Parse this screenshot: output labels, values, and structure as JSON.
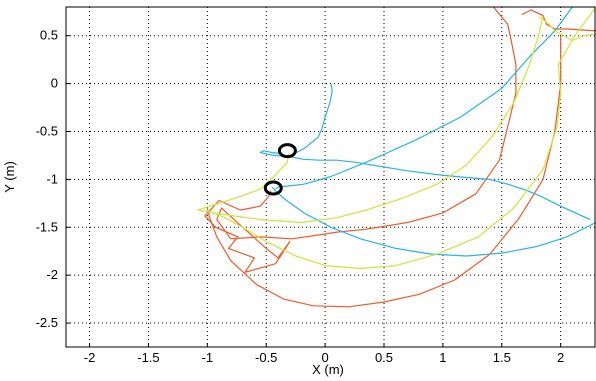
{
  "chart_data": {
    "type": "line",
    "title": "",
    "xlabel": "X (m)",
    "ylabel": "Y (m)",
    "xlim": [
      -2.2,
      2.3
    ],
    "ylim": [
      -2.75,
      0.8
    ],
    "xticks": [
      -2,
      -1.5,
      -1,
      -0.5,
      0,
      0.5,
      1,
      1.5,
      2
    ],
    "xtick_labels": [
      "-2",
      "-1.5",
      "-1",
      "-0.5",
      "0",
      "0.5",
      "1",
      "1.5",
      "2"
    ],
    "yticks": [
      0.5,
      0,
      -0.5,
      -1,
      -1.5,
      -2,
      -2.5
    ],
    "ytick_labels": [
      "0.5",
      "0",
      "-0.5",
      "-1",
      "-1.5",
      "-2",
      "-2.5"
    ],
    "grid": true,
    "grid_style": "dotted",
    "legend": "none",
    "colors": {
      "red": "#f2592a",
      "cyan": "#29b4e4",
      "yellowgreen": "#c8e83a",
      "marker": "#000000"
    },
    "series": [
      {
        "color": "#f2592a",
        "x": [
          1.43,
          1.55,
          1.58,
          1.62,
          1.62,
          1.55,
          1.48,
          1.28,
          1.0,
          0.7,
          0.35,
          0.1,
          -0.05,
          -0.28,
          -0.55,
          -0.8,
          -0.92,
          -0.88,
          -0.7,
          -0.5,
          -0.4,
          -0.3,
          -0.42,
          -0.68,
          -0.6,
          -0.82,
          -0.74,
          -0.93,
          -1.02,
          -0.9,
          -0.72,
          -0.55,
          -0.48,
          -0.46
        ],
        "y": [
          0.8,
          0.62,
          0.45,
          0.2,
          -0.1,
          -0.45,
          -0.8,
          -1.15,
          -1.35,
          -1.45,
          -1.52,
          -1.55,
          -1.58,
          -1.62,
          -1.6,
          -1.62,
          -1.42,
          -1.3,
          -1.5,
          -1.72,
          -1.82,
          -1.65,
          -1.88,
          -1.97,
          -1.82,
          -1.72,
          -1.6,
          -1.5,
          -1.38,
          -1.22,
          -1.32,
          -1.28,
          -1.18,
          -1.12
        ]
      },
      {
        "color": "#f2592a",
        "x": [
          1.67,
          1.75,
          1.85,
          1.88,
          1.95,
          2.06,
          2.3
        ],
        "y": [
          0.72,
          0.77,
          0.71,
          0.62,
          0.57,
          0.57,
          0.55
        ]
      },
      {
        "color": "#f2592a",
        "x": [
          2.0,
          2.0,
          1.95,
          1.85,
          1.65,
          1.4,
          1.1,
          0.8,
          0.5,
          0.2,
          -0.1,
          -0.35,
          -0.58,
          -0.8,
          -0.92,
          -0.98,
          -1.0
        ],
        "y": [
          0.5,
          0.0,
          -0.5,
          -1.0,
          -1.4,
          -1.78,
          -2.05,
          -2.2,
          -2.28,
          -2.33,
          -2.32,
          -2.25,
          -2.1,
          -1.85,
          -1.6,
          -1.4,
          -1.3
        ]
      },
      {
        "color": "#29b4e4",
        "x": [
          0.05,
          0.06,
          0.04,
          0.0,
          -0.03,
          -0.06,
          -0.1,
          -0.18,
          -0.26,
          -0.32,
          -0.38,
          -0.45,
          -0.52,
          -0.55,
          -0.48,
          -0.42,
          -0.32,
          -0.18,
          -0.05,
          0.1,
          0.25,
          0.45,
          0.7,
          0.95,
          1.2,
          1.4,
          1.55,
          1.7,
          1.82,
          2.0,
          2.25
        ],
        "y": [
          0.0,
          -0.08,
          -0.2,
          -0.35,
          -0.48,
          -0.56,
          -0.6,
          -0.68,
          -0.73,
          -0.76,
          -0.73,
          -0.72,
          -0.7,
          -0.72,
          -0.74,
          -0.75,
          -0.76,
          -0.79,
          -0.8,
          -0.8,
          -0.82,
          -0.86,
          -0.91,
          -0.95,
          -0.98,
          -1.0,
          -1.05,
          -1.11,
          -1.17,
          -1.28,
          -1.42
        ]
      },
      {
        "color": "#29b4e4",
        "x": [
          2.1,
          1.95,
          1.75,
          1.5,
          1.15,
          0.75,
          0.35,
          0.05,
          -0.18,
          -0.32,
          -0.4,
          -0.42
        ],
        "y": [
          0.8,
          0.55,
          0.3,
          -0.05,
          -0.35,
          -0.6,
          -0.82,
          -0.97,
          -1.05,
          -1.07,
          -1.08,
          -1.1
        ]
      },
      {
        "color": "#29b4e4",
        "x": [
          2.3,
          2.05,
          1.8,
          1.5,
          1.2,
          0.9,
          0.6,
          0.3,
          0.05,
          -0.18,
          -0.35,
          -0.42,
          -0.45
        ],
        "y": [
          -1.45,
          -1.6,
          -1.7,
          -1.77,
          -1.8,
          -1.78,
          -1.72,
          -1.62,
          -1.5,
          -1.35,
          -1.2,
          -1.12,
          -1.08
        ]
      },
      {
        "color": "#c8e83a",
        "x": [
          1.85,
          1.8,
          1.72,
          1.6,
          1.42,
          1.2,
          0.95,
          0.65,
          0.35,
          0.1,
          -0.2,
          -0.55,
          -0.95,
          -1.08,
          -0.72,
          -0.55,
          -0.42,
          -0.32,
          -0.31
        ],
        "y": [
          0.7,
          0.45,
          0.15,
          -0.2,
          -0.55,
          -0.85,
          -1.05,
          -1.2,
          -1.32,
          -1.4,
          -1.45,
          -1.42,
          -1.35,
          -1.32,
          -1.18,
          -1.1,
          -0.95,
          -0.82,
          -0.73
        ]
      },
      {
        "color": "#c8e83a",
        "x": [
          2.3,
          2.12,
          1.98,
          2.0,
          1.97,
          1.85,
          1.6,
          1.3,
          0.95,
          0.6,
          0.3,
          0.0,
          -0.25,
          -0.5,
          -0.7,
          -0.85,
          -0.95,
          -1.0
        ],
        "y": [
          0.8,
          0.5,
          0.2,
          -0.1,
          -0.45,
          -0.9,
          -1.3,
          -1.6,
          -1.78,
          -1.9,
          -1.93,
          -1.9,
          -1.8,
          -1.65,
          -1.5,
          -1.4,
          -1.35,
          -1.33
        ]
      },
      {
        "color": "#c8e83a",
        "x": [
          1.82,
          1.9,
          1.95,
          2.1,
          2.2,
          2.3
        ],
        "y": [
          0.7,
          0.62,
          0.55,
          0.45,
          0.5,
          0.52
        ]
      }
    ],
    "markers": [
      {
        "shape": "ellipse",
        "color": "#000000",
        "x": -0.32,
        "y": -0.7
      },
      {
        "shape": "ellipse",
        "color": "#000000",
        "x": -0.44,
        "y": -1.09
      }
    ]
  }
}
